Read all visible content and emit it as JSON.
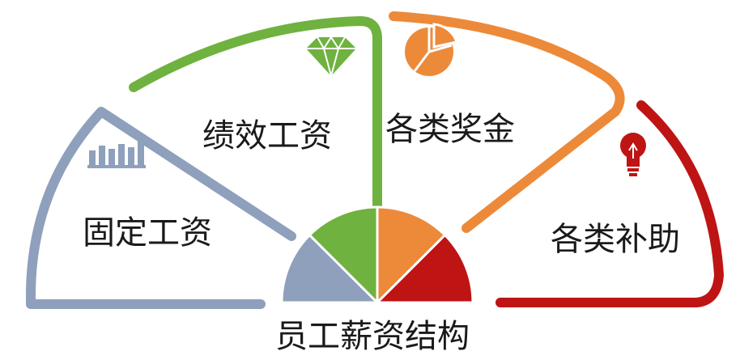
{
  "diagram": {
    "center_title": "员工薪资结构",
    "segments": [
      {
        "label": "固定工资",
        "color": "#8ea0bb",
        "icon": "bar-chart-icon"
      },
      {
        "label": "绩效工资",
        "color": "#6fb23f",
        "icon": "diamond-icon"
      },
      {
        "label": "各类奖金",
        "color": "#ec8a3a",
        "icon": "pie-chart-icon"
      },
      {
        "label": "各类补助",
        "color": "#bf1414",
        "icon": "lightbulb-icon"
      }
    ]
  }
}
